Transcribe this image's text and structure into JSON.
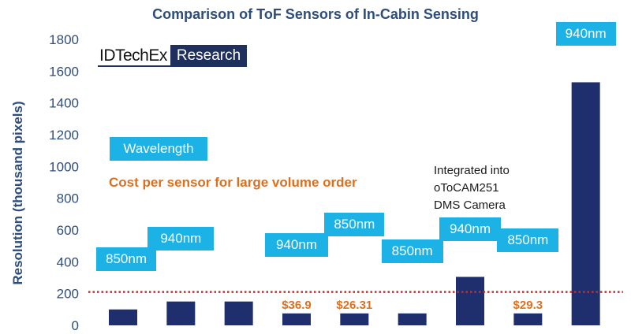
{
  "chart_data": {
    "type": "bar",
    "title": "Comparison  of ToF Sensors of In-Cabin Sensing",
    "ylabel": "Resolution (thousand pixels)",
    "xlabel": "",
    "ylim": [
      0,
      1800
    ],
    "yticks": [
      0,
      200,
      400,
      600,
      800,
      1000,
      1200,
      1400,
      1600,
      1800
    ],
    "grid": false,
    "bar_color": "#1f2f6e",
    "values": [
      100,
      150,
      150,
      75,
      75,
      75,
      305,
      75,
      1530
    ],
    "wavelengths": [
      "850nm",
      "940nm",
      "",
      "940nm",
      "850nm",
      "850nm",
      "940nm",
      "850nm",
      "940nm"
    ],
    "costs": [
      "",
      "",
      "",
      "$36.9",
      "$26.31",
      "",
      "",
      "$29.3",
      ""
    ],
    "reference_line": {
      "value": 210,
      "color": "#cc2b2b",
      "style": "dotted"
    },
    "legend": {
      "wavelength_label": "Wavelength",
      "cost_label": "Cost per sensor for large volume order"
    },
    "annotation": [
      "Integrated into",
      "oToCAM251",
      "DMS Camera"
    ],
    "colors": {
      "wavelength_box": "#1db2e6",
      "cost_text": "#e06f1c",
      "title": "#2e4d7b"
    }
  },
  "logo": {
    "main": "IDTechEx",
    "sub": "Research"
  }
}
